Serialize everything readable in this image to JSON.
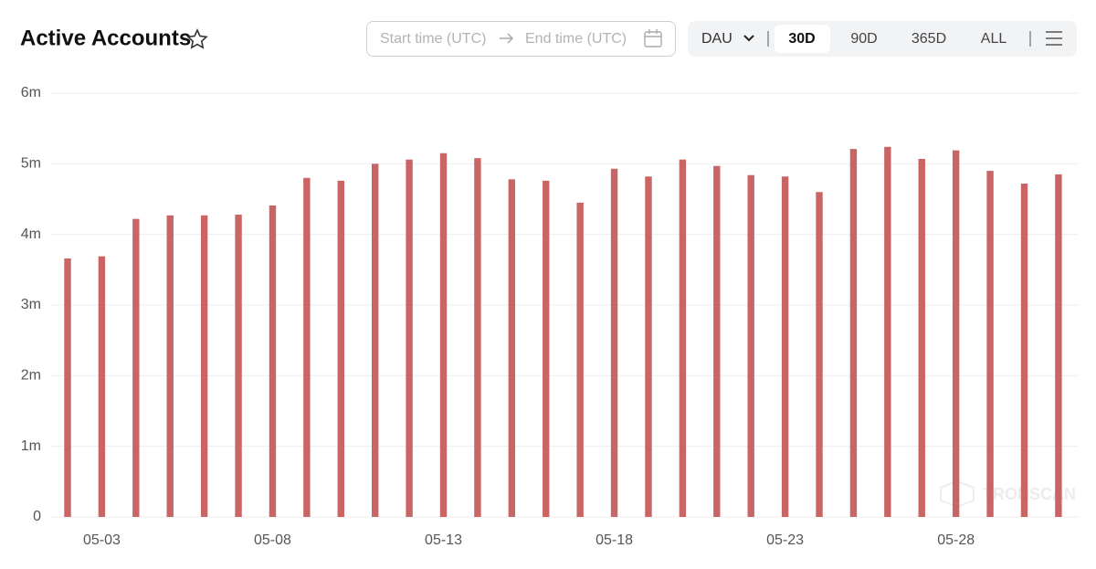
{
  "chart_data": {
    "type": "bar",
    "title": "Active Accounts",
    "categories": [
      null,
      "05-03",
      null,
      null,
      null,
      null,
      "05-08",
      null,
      null,
      null,
      null,
      "05-13",
      null,
      null,
      null,
      null,
      "05-18",
      null,
      null,
      null,
      null,
      "05-23",
      null,
      null,
      null,
      null,
      "05-28",
      null,
      null,
      null
    ],
    "values": [
      3660000,
      3690000,
      4220000,
      4270000,
      4270000,
      4280000,
      4410000,
      4800000,
      4760000,
      5000000,
      5060000,
      5150000,
      5080000,
      4780000,
      4760000,
      4450000,
      4930000,
      4820000,
      5060000,
      4970000,
      4840000,
      4820000,
      4600000,
      5210000,
      5240000,
      5070000,
      5190000,
      4900000,
      4720000,
      4850000
    ],
    "color": "#c96564",
    "ylim": [
      0,
      6000000
    ],
    "yticks": [
      0,
      {
        "value": 1000000,
        "label": "1m"
      },
      {
        "value": 2000000,
        "label": "2m"
      },
      {
        "value": 3000000,
        "label": "3m"
      },
      {
        "value": 4000000,
        "label": "4m"
      },
      {
        "value": 5000000,
        "label": "5m"
      },
      {
        "value": 6000000,
        "label": "6m"
      }
    ],
    "grid": true
  },
  "controls": {
    "start_placeholder": "Start time (UTC)",
    "end_placeholder": "End time (UTC)",
    "metric": "DAU",
    "ranges": [
      "30D",
      "90D",
      "365D",
      "ALL"
    ],
    "selected_range": "30D"
  },
  "watermark": "TRONSCAN"
}
